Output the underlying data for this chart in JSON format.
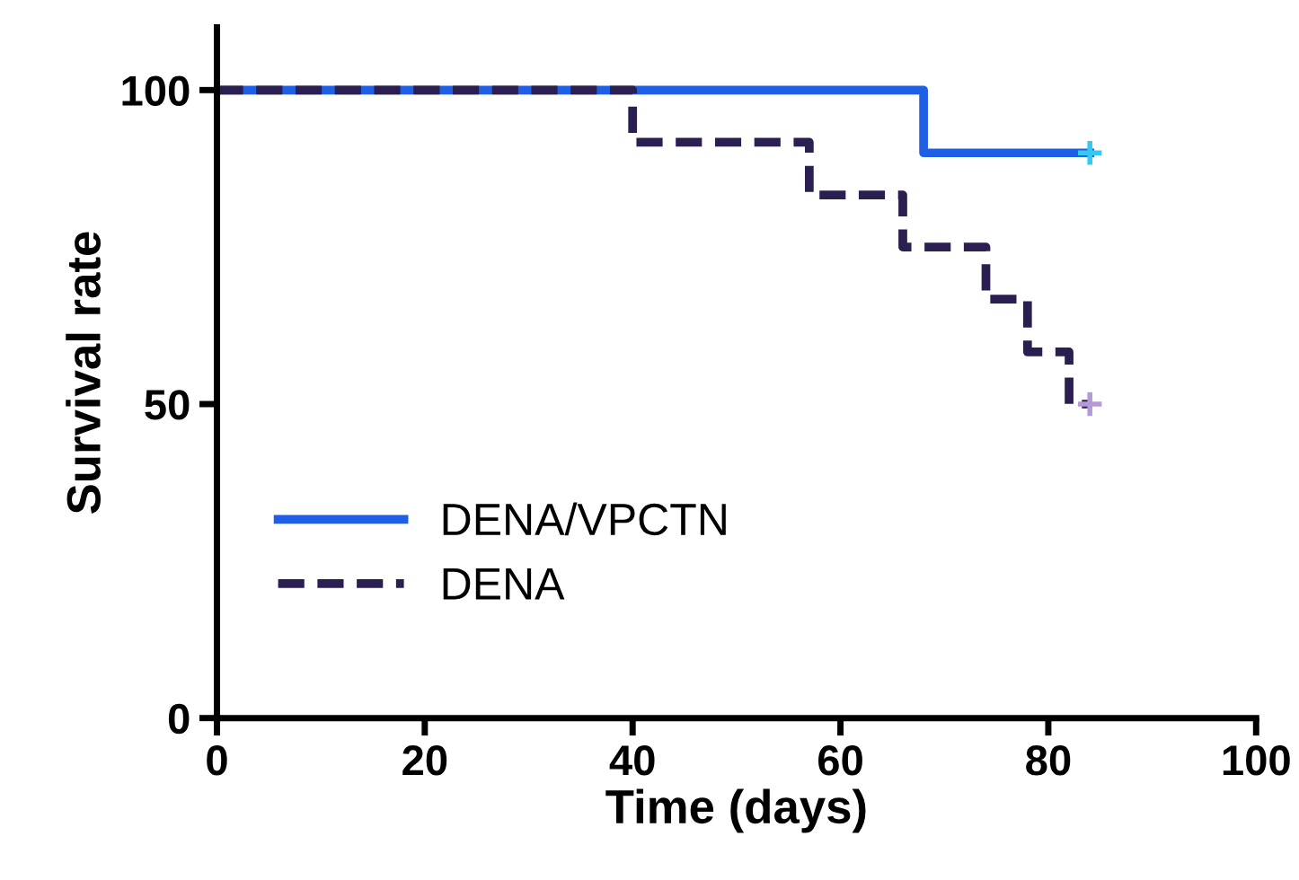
{
  "chart_data": {
    "type": "step",
    "xlabel": "Time (days)",
    "ylabel": "Survival rate",
    "xlim": [
      0,
      100
    ],
    "xticks": [
      0,
      20,
      40,
      60,
      80,
      100
    ],
    "ylim": [
      0,
      110
    ],
    "yticks": [
      0,
      50,
      100
    ],
    "grid": false,
    "legend": "bottom left",
    "series": [
      {
        "name": "DENA/VPCTN",
        "color": "#1f5fe6",
        "line_style": "solid",
        "x": [
          0,
          68,
          84
        ],
        "values": [
          100,
          90,
          90
        ]
      },
      {
        "name": "DENA",
        "color": "#2b1f52",
        "line_style": "dashed",
        "x": [
          0,
          40,
          57,
          66,
          74,
          78,
          82,
          84
        ],
        "values": [
          100,
          91.7,
          83.3,
          75,
          66.7,
          58.3,
          50,
          50
        ]
      },
      {
        "type": "scatter",
        "marker": "cross",
        "color": "#35c8f0",
        "x": [
          84
        ],
        "values": [
          90
        ]
      },
      {
        "type": "scatter",
        "marker": "cross",
        "color": "#b49ad6",
        "x": [
          84
        ],
        "values": [
          50
        ]
      }
    ]
  }
}
